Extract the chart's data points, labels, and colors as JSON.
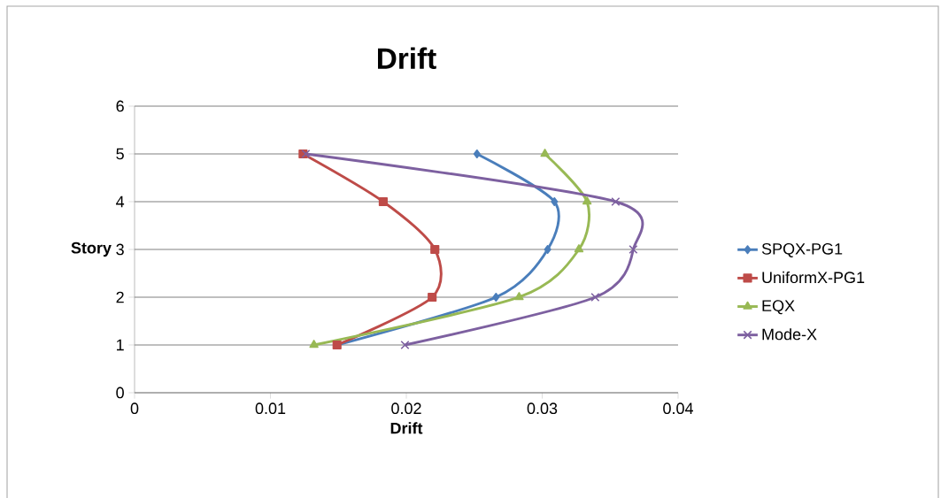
{
  "chart_data": {
    "type": "line",
    "title": "Drift",
    "xlabel": "Drift",
    "ylabel": "Story",
    "xlim": [
      0,
      0.04
    ],
    "xticks": [
      0,
      0.01,
      0.02,
      0.03,
      0.04
    ],
    "ylim": [
      0,
      6
    ],
    "yticks": [
      0,
      1,
      2,
      3,
      4,
      5,
      6
    ],
    "grid": "y",
    "legend": "right",
    "series": [
      {
        "name": "SPQX-PG1",
        "color": "#4a7ebb",
        "marker": "diamond",
        "x": [
          0.0149,
          0.0266,
          0.0304,
          0.0309,
          0.0252
        ],
        "values": [
          1,
          2,
          3,
          4,
          5
        ]
      },
      {
        "name": "UniformX-PG1",
        "color": "#be4b48",
        "marker": "square",
        "x": [
          0.0149,
          0.0219,
          0.0221,
          0.0183,
          0.0124
        ],
        "values": [
          1,
          2,
          3,
          4,
          5
        ]
      },
      {
        "name": "EQX",
        "color": "#98b954",
        "marker": "triangle",
        "x": [
          0.0132,
          0.0283,
          0.0327,
          0.0333,
          0.0302
        ],
        "values": [
          1,
          2,
          3,
          4,
          5
        ]
      },
      {
        "name": "Mode-X",
        "color": "#7d60a0",
        "marker": "cross",
        "x": [
          0.0199,
          0.0339,
          0.0367,
          0.0354,
          0.0126
        ],
        "values": [
          1,
          2,
          3,
          4,
          5
        ]
      }
    ]
  }
}
